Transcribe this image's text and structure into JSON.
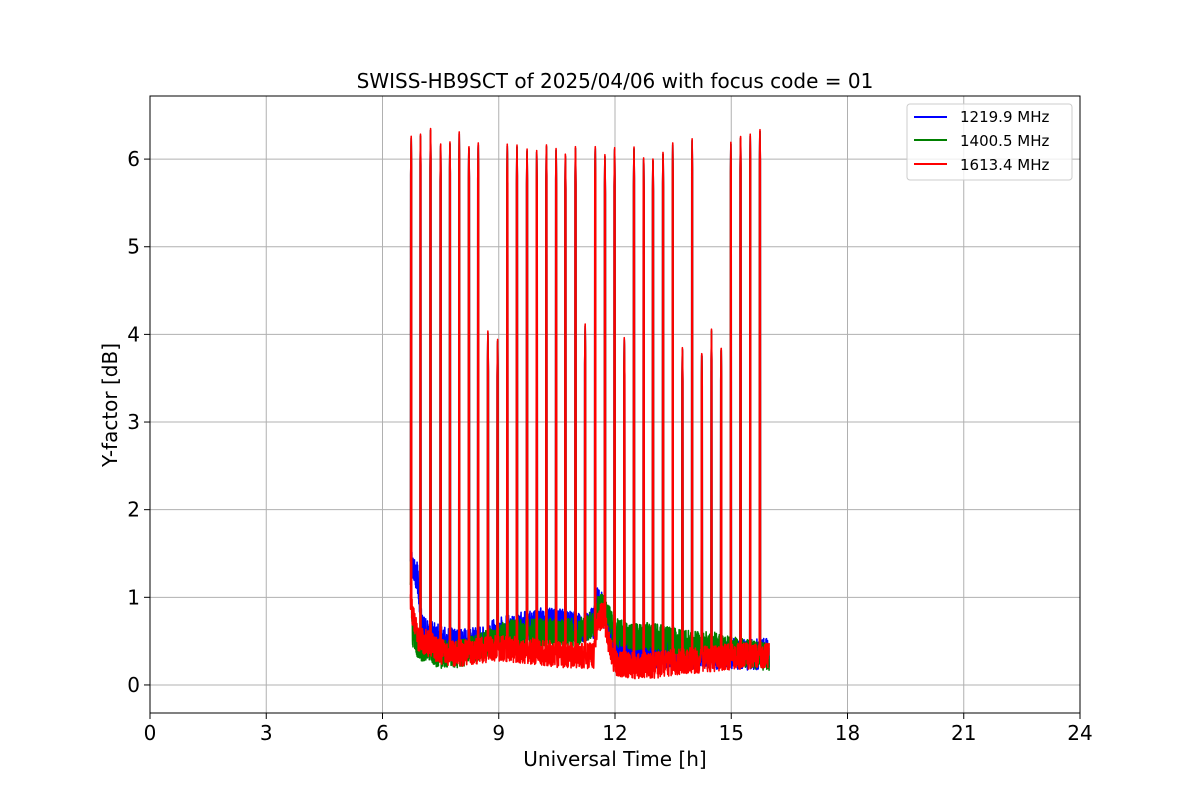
{
  "chart_data": {
    "type": "line",
    "title": "SWISS-HB9SCT of 2025/04/06 with focus code = 01",
    "xlabel": "Universal Time [h]",
    "ylabel": "Y-factor [dB]",
    "xlim": [
      0,
      24
    ],
    "ylim": [
      -0.32,
      6.72
    ],
    "xticks": [
      0,
      3,
      6,
      9,
      12,
      15,
      18,
      21,
      24
    ],
    "xtick_labels": [
      "0",
      "3",
      "6",
      "9",
      "12",
      "15",
      "18",
      "21",
      "24"
    ],
    "yticks": [
      0,
      1,
      2,
      3,
      4,
      5,
      6
    ],
    "ytick_labels": [
      "0",
      "1",
      "2",
      "3",
      "4",
      "5",
      "6"
    ],
    "grid": true,
    "legend_position": "top-right",
    "data_range": [
      6.72,
      15.98
    ],
    "spikes": [
      {
        "x": 6.74,
        "y": 6.3
      },
      {
        "x": 6.98,
        "y": 6.3
      },
      {
        "x": 7.24,
        "y": 6.38
      },
      {
        "x": 7.5,
        "y": 6.22
      },
      {
        "x": 7.74,
        "y": 6.22
      },
      {
        "x": 7.98,
        "y": 6.31
      },
      {
        "x": 8.23,
        "y": 6.22
      },
      {
        "x": 8.47,
        "y": 6.24
      },
      {
        "x": 8.72,
        "y": 4.07
      },
      {
        "x": 8.97,
        "y": 3.99
      },
      {
        "x": 9.22,
        "y": 6.21
      },
      {
        "x": 9.47,
        "y": 6.2
      },
      {
        "x": 9.73,
        "y": 6.17
      },
      {
        "x": 9.98,
        "y": 6.13
      },
      {
        "x": 10.23,
        "y": 6.21
      },
      {
        "x": 10.48,
        "y": 6.16
      },
      {
        "x": 10.72,
        "y": 6.12
      },
      {
        "x": 10.98,
        "y": 6.19
      },
      {
        "x": 11.23,
        "y": 4.15
      },
      {
        "x": 11.49,
        "y": 6.19
      },
      {
        "x": 11.74,
        "y": 6.09
      },
      {
        "x": 11.99,
        "y": 6.17
      },
      {
        "x": 12.24,
        "y": 4.01
      },
      {
        "x": 12.49,
        "y": 6.17
      },
      {
        "x": 12.74,
        "y": 6.07
      },
      {
        "x": 12.98,
        "y": 6.08
      },
      {
        "x": 13.24,
        "y": 6.14
      },
      {
        "x": 13.49,
        "y": 6.2
      },
      {
        "x": 13.74,
        "y": 3.92
      },
      {
        "x": 13.99,
        "y": 6.24
      },
      {
        "x": 14.24,
        "y": 3.86
      },
      {
        "x": 14.49,
        "y": 4.06
      },
      {
        "x": 14.74,
        "y": 3.92
      },
      {
        "x": 14.99,
        "y": 6.2
      },
      {
        "x": 15.24,
        "y": 6.33
      },
      {
        "x": 15.49,
        "y": 6.3
      },
      {
        "x": 15.74,
        "y": 6.4
      }
    ],
    "series": [
      {
        "name": "1219.9 MHz",
        "color": "#0000ff",
        "baseline": [
          [
            6.72,
            1.6
          ],
          [
            6.78,
            1.3
          ],
          [
            6.9,
            1.25
          ],
          [
            7.05,
            0.6
          ],
          [
            7.5,
            0.5
          ],
          [
            8.0,
            0.45
          ],
          [
            8.6,
            0.5
          ],
          [
            9.0,
            0.6
          ],
          [
            9.5,
            0.65
          ],
          [
            10.0,
            0.7
          ],
          [
            10.5,
            0.7
          ],
          [
            11.0,
            0.65
          ],
          [
            11.45,
            0.7
          ],
          [
            11.55,
            0.95
          ],
          [
            11.7,
            0.85
          ],
          [
            11.85,
            0.6
          ],
          [
            12.0,
            0.45
          ],
          [
            12.5,
            0.4
          ],
          [
            13.0,
            0.38
          ],
          [
            13.5,
            0.35
          ],
          [
            14.0,
            0.35
          ],
          [
            14.5,
            0.35
          ],
          [
            15.0,
            0.35
          ],
          [
            15.5,
            0.35
          ],
          [
            15.98,
            0.35
          ]
        ],
        "noise_band": 0.36
      },
      {
        "name": "1400.5 MHz",
        "color": "#008000",
        "baseline": [
          [
            6.72,
            1.2
          ],
          [
            6.78,
            0.6
          ],
          [
            6.9,
            0.45
          ],
          [
            7.5,
            0.35
          ],
          [
            8.0,
            0.35
          ],
          [
            8.6,
            0.45
          ],
          [
            9.0,
            0.55
          ],
          [
            9.5,
            0.6
          ],
          [
            10.0,
            0.6
          ],
          [
            10.5,
            0.6
          ],
          [
            11.0,
            0.6
          ],
          [
            11.45,
            0.7
          ],
          [
            11.55,
            0.85
          ],
          [
            11.7,
            0.9
          ],
          [
            11.85,
            0.75
          ],
          [
            12.0,
            0.6
          ],
          [
            12.5,
            0.55
          ],
          [
            13.0,
            0.55
          ],
          [
            13.5,
            0.5
          ],
          [
            14.0,
            0.45
          ],
          [
            14.5,
            0.45
          ],
          [
            15.0,
            0.4
          ],
          [
            15.5,
            0.35
          ],
          [
            15.98,
            0.32
          ]
        ],
        "noise_band": 0.32
      },
      {
        "name": "1613.4 MHz",
        "color": "#ff0000",
        "baseline": [
          [
            6.72,
            1.0
          ],
          [
            6.78,
            0.8
          ],
          [
            6.9,
            0.55
          ],
          [
            7.5,
            0.38
          ],
          [
            8.0,
            0.36
          ],
          [
            8.6,
            0.4
          ],
          [
            9.0,
            0.42
          ],
          [
            9.5,
            0.4
          ],
          [
            10.0,
            0.38
          ],
          [
            10.5,
            0.35
          ],
          [
            11.0,
            0.33
          ],
          [
            11.45,
            0.33
          ],
          [
            11.55,
            0.75
          ],
          [
            11.7,
            0.8
          ],
          [
            11.85,
            0.45
          ],
          [
            12.0,
            0.25
          ],
          [
            12.5,
            0.22
          ],
          [
            13.0,
            0.22
          ],
          [
            13.5,
            0.26
          ],
          [
            14.0,
            0.28
          ],
          [
            14.5,
            0.3
          ],
          [
            15.0,
            0.32
          ],
          [
            15.5,
            0.33
          ],
          [
            15.98,
            0.34
          ]
        ],
        "noise_band": 0.3
      }
    ]
  }
}
